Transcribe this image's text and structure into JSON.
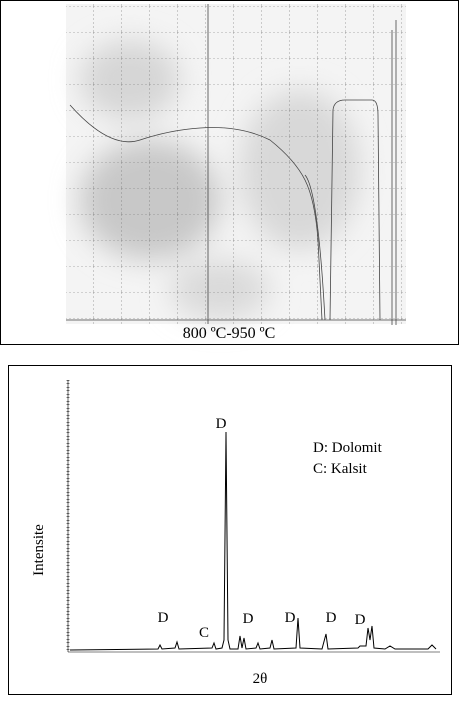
{
  "figure_top": {
    "caption": "800 ºC-950 ºC"
  },
  "figure_bottom": {
    "y_label": "Intensite",
    "x_label": "2θ",
    "legend": [
      "D: Dolomit",
      "C: Kalsit"
    ],
    "peak_labels": [
      "D",
      "C",
      "D",
      "D",
      "D",
      "D",
      "D"
    ]
  }
}
